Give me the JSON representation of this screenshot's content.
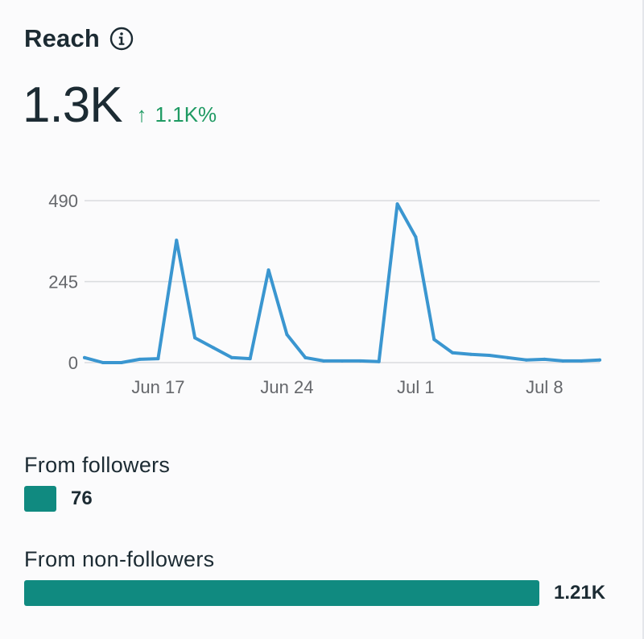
{
  "card": {
    "title": "Reach",
    "info_icon": "info-icon",
    "value": "1.3K",
    "change_arrow": "↑",
    "change": "1.1K%",
    "change_color": "#1f9a63"
  },
  "chart_data": {
    "type": "line",
    "title": "",
    "xlabel": "",
    "ylabel": "",
    "ylim": [
      0,
      490
    ],
    "yticks": [
      "0",
      "245",
      "490"
    ],
    "xticks": [
      "Jun 17",
      "Jun 24",
      "Jul 1",
      "Jul 8"
    ],
    "x": [
      "Jun 13",
      "Jun 14",
      "Jun 15",
      "Jun 16",
      "Jun 17",
      "Jun 18",
      "Jun 19",
      "Jun 20",
      "Jun 21",
      "Jun 22",
      "Jun 23",
      "Jun 24",
      "Jun 25",
      "Jun 26",
      "Jun 27",
      "Jun 28",
      "Jun 29",
      "Jun 30",
      "Jul 1",
      "Jul 2",
      "Jul 3",
      "Jul 4",
      "Jul 5",
      "Jul 6",
      "Jul 7",
      "Jul 8",
      "Jul 9",
      "Jul 10",
      "Jul 11"
    ],
    "series": [
      {
        "color": "#3a96d0",
        "values": [
          15,
          0,
          0,
          10,
          12,
          370,
          75,
          45,
          15,
          12,
          280,
          85,
          15,
          5,
          5,
          5,
          3,
          480,
          380,
          70,
          30,
          25,
          22,
          15,
          8,
          10,
          5,
          5,
          8
        ]
      }
    ],
    "grid": true
  },
  "breakdown": {
    "followers_label": "From followers",
    "followers_value": "76",
    "followers_fraction": 0.063,
    "non_followers_label": "From non-followers",
    "non_followers_value": "1.21K",
    "non_followers_fraction": 1.0,
    "bar_color": "#108a80"
  }
}
